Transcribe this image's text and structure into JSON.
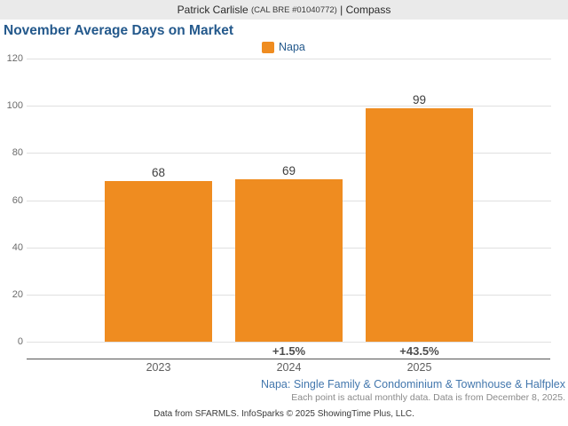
{
  "header": {
    "agent": "Patrick Carlisle",
    "license": "(CAL BRE #01040772)",
    "separator": " | ",
    "brokerage": "Compass"
  },
  "title": "November Average Days on Market",
  "legend": {
    "label": "Napa"
  },
  "colors": {
    "bar": "#ef8c20",
    "title": "#24598c",
    "note_blue": "#4377ad",
    "header_bg": "#eaeaea"
  },
  "chart_data": {
    "type": "bar",
    "title": "November Average Days on Market",
    "categories": [
      "2023",
      "2024",
      "2025"
    ],
    "values": [
      68,
      69,
      99
    ],
    "change_labels": [
      "",
      "+1.5%",
      "+43.5%"
    ],
    "series_name": "Napa",
    "xlabel": "",
    "ylabel": "",
    "ylim": [
      0,
      120
    ],
    "yticks": [
      0,
      20,
      40,
      60,
      80,
      100,
      120
    ],
    "grid": "horizontal",
    "legend_position": "top-center"
  },
  "footnotes": {
    "segment": "Napa: Single Family & Condominium & Townhouse & Halfplex",
    "data_note": "Each point is actual monthly data. Data is from December 8, 2025.",
    "source": "Data from SFARMLS. InfoSparks © 2025 ShowingTime Plus, LLC."
  }
}
